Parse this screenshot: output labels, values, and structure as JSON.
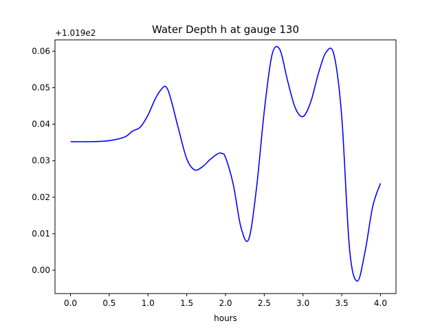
{
  "chart_data": {
    "type": "line",
    "title": "Water Depth h at gauge 130",
    "xlabel": "hours",
    "ylabel": "",
    "y_offset_label": "+1.019e2",
    "xlim": [
      -0.2,
      4.2
    ],
    "ylim": [
      -0.0064,
      0.0631
    ],
    "x_ticks": [
      0.0,
      0.5,
      1.0,
      1.5,
      2.0,
      2.5,
      3.0,
      3.5,
      4.0
    ],
    "x_tick_labels": [
      "0.0",
      "0.5",
      "1.0",
      "1.5",
      "2.0",
      "2.5",
      "3.0",
      "3.5",
      "4.0"
    ],
    "y_ticks": [
      0.0,
      0.01,
      0.02,
      0.03,
      0.04,
      0.05,
      0.06
    ],
    "y_tick_labels": [
      "0.00",
      "0.01",
      "0.02",
      "0.03",
      "0.04",
      "0.05",
      "0.06"
    ],
    "grid": false,
    "series": [
      {
        "color": "#0000ff",
        "x": [
          0.0,
          0.25,
          0.5,
          0.7,
          0.8,
          0.9,
          1.0,
          1.1,
          1.2,
          1.25,
          1.3,
          1.4,
          1.5,
          1.6,
          1.7,
          1.8,
          1.9,
          1.95,
          2.0,
          2.1,
          2.2,
          2.3,
          2.4,
          2.5,
          2.6,
          2.7,
          2.8,
          2.9,
          3.0,
          3.1,
          3.2,
          3.3,
          3.4,
          3.5,
          3.6,
          3.7,
          3.8,
          3.9,
          4.0
        ],
        "y": [
          0.0352,
          0.0352,
          0.0355,
          0.0365,
          0.0381,
          0.0392,
          0.0425,
          0.0472,
          0.0502,
          0.0497,
          0.0465,
          0.0382,
          0.0305,
          0.0275,
          0.0283,
          0.0303,
          0.0319,
          0.032,
          0.0309,
          0.0235,
          0.0117,
          0.0085,
          0.0225,
          0.0435,
          0.059,
          0.0605,
          0.052,
          0.0445,
          0.0421,
          0.0461,
          0.054,
          0.0598,
          0.059,
          0.042,
          0.006,
          -0.003,
          0.005,
          0.0175,
          0.0238
        ]
      }
    ]
  }
}
